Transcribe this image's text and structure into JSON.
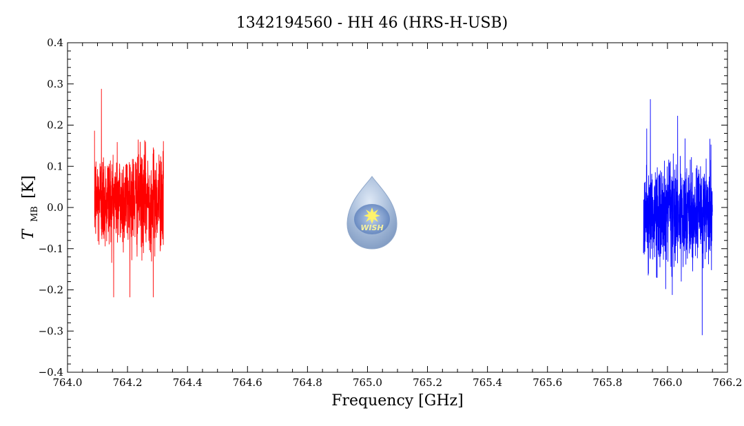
{
  "chart_data": {
    "type": "line",
    "title": "1342194560 - HH 46 (HRS-H-USB)",
    "xlabel": "Frequency [GHz]",
    "ylabel_main": "T",
    "ylabel_sub": "MB",
    "ylabel_unit": "[K]",
    "xlim": [
      764.0,
      766.2
    ],
    "ylim": [
      -0.4,
      0.4
    ],
    "x_ticks": [
      "764.0",
      "764.2",
      "764.4",
      "764.6",
      "764.8",
      "765.0",
      "765.2",
      "765.4",
      "765.6",
      "765.8",
      "766.0",
      "766.2"
    ],
    "y_ticks": [
      "-0.4",
      "-0.3",
      "-0.2",
      "-0.1",
      "0.0",
      "0.1",
      "0.2",
      "0.3",
      "0.4"
    ],
    "grid": false,
    "series": [
      {
        "color": "#ff0000",
        "x_range": [
          764.09,
          764.32
        ],
        "channels": 700,
        "mean": 0.02,
        "noise_sigma": 0.06,
        "max": 0.288,
        "min": -0.218
      },
      {
        "color": "#0000ff",
        "x_range": [
          765.92,
          766.15
        ],
        "channels": 700,
        "mean": -0.02,
        "noise_sigma": 0.06,
        "max": 0.263,
        "min": -0.31
      }
    ]
  },
  "logo": {
    "text": "WISH",
    "name": "wish-logo"
  }
}
